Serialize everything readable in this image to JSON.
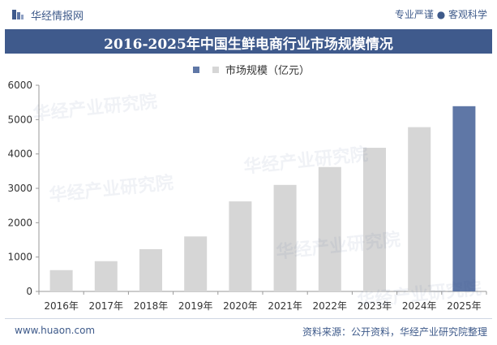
{
  "header": {
    "brand": "华经情报网",
    "tagline": "专业严谨 ● 客观科学"
  },
  "title": "2016-2025年中国生鲜电商行业市场规模情况",
  "footer": {
    "website": "www.huaon.com",
    "source": "资料来源：公开资料，华经产业研究院整理"
  },
  "watermarks": [
    "华经产业研究院",
    "www.huaon.com"
  ],
  "colors": {
    "header_bar": "#3f5a8c",
    "bar_default": "#d6d6d6",
    "bar_highlight": "#5f77a6"
  },
  "chart_data": {
    "type": "bar",
    "legend": [
      "市场规模（亿元）"
    ],
    "categories": [
      "2016年",
      "2017年",
      "2018年",
      "2019年",
      "2020年",
      "2021年",
      "2022年",
      "2023年",
      "2024年",
      "2025年"
    ],
    "series": [
      {
        "name": "市场规模（亿元）",
        "values": [
          620,
          880,
          1230,
          1600,
          2620,
          3100,
          3620,
          4180,
          4780,
          5390
        ]
      }
    ],
    "highlight_index": 9,
    "ylim": [
      0,
      6000
    ],
    "yticks": [
      0,
      1000,
      2000,
      3000,
      4000,
      5000,
      6000
    ],
    "grid": false
  }
}
